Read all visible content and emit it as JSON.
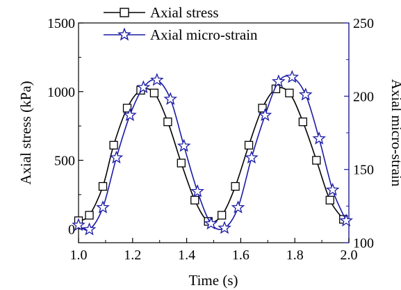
{
  "chart_data": {
    "type": "line",
    "xlabel": "Time (s)",
    "ylabel_left": "Axial stress (kPa)",
    "ylabel_right": "Axial micro-strain",
    "xlim": [
      1.0,
      2.0
    ],
    "ylim_left": [
      -100,
      1500
    ],
    "ylim_right": [
      100,
      250
    ],
    "x_ticks": [
      "1.0",
      "1.2",
      "1.4",
      "1.6",
      "1.8",
      "2.0"
    ],
    "y_left_ticks": [
      "0",
      "500",
      "1000",
      "1500"
    ],
    "y_right_ticks": [
      "100",
      "150",
      "200",
      "250"
    ],
    "grid": false,
    "legend_position": "top",
    "series": [
      {
        "name": "Axial stress",
        "axis": "left",
        "color": "#000000",
        "marker": "square",
        "points": [
          [
            1.0,
            60
          ],
          [
            1.04,
            100
          ],
          [
            1.09,
            310
          ],
          [
            1.13,
            610
          ],
          [
            1.18,
            880
          ],
          [
            1.23,
            1010
          ],
          [
            1.28,
            990
          ],
          [
            1.33,
            780
          ],
          [
            1.38,
            480
          ],
          [
            1.43,
            210
          ],
          [
            1.48,
            55
          ],
          [
            1.53,
            100
          ],
          [
            1.58,
            310
          ],
          [
            1.63,
            610
          ],
          [
            1.68,
            880
          ],
          [
            1.73,
            1020
          ],
          [
            1.78,
            990
          ],
          [
            1.83,
            780
          ],
          [
            1.88,
            500
          ],
          [
            1.93,
            210
          ],
          [
            1.98,
            70
          ]
        ]
      },
      {
        "name": "Axial micro-strain",
        "axis": "right",
        "color": "#1a1aa6",
        "marker": "star",
        "points": [
          [
            1.0,
            112
          ],
          [
            1.04,
            109
          ],
          [
            1.09,
            124
          ],
          [
            1.14,
            158
          ],
          [
            1.19,
            187
          ],
          [
            1.24,
            206
          ],
          [
            1.29,
            211
          ],
          [
            1.34,
            198
          ],
          [
            1.39,
            166
          ],
          [
            1.44,
            135
          ],
          [
            1.49,
            113
          ],
          [
            1.54,
            110
          ],
          [
            1.59,
            124
          ],
          [
            1.64,
            158
          ],
          [
            1.69,
            187
          ],
          [
            1.74,
            210
          ],
          [
            1.79,
            213
          ],
          [
            1.84,
            201
          ],
          [
            1.89,
            171
          ],
          [
            1.94,
            136
          ],
          [
            1.99,
            115
          ]
        ]
      }
    ]
  }
}
